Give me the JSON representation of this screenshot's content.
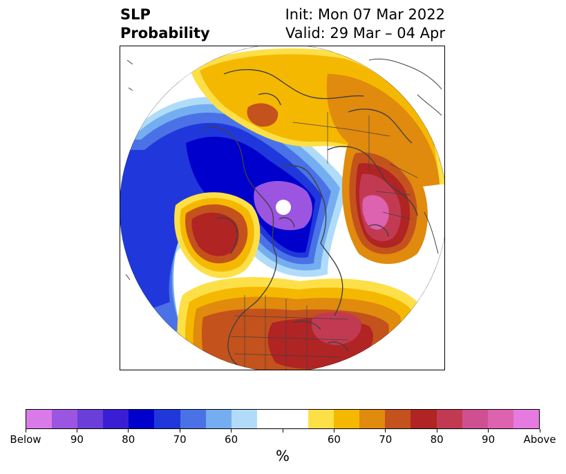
{
  "title": {
    "left_line1": "SLP",
    "left_line2": "Probability",
    "right_line1": "Init: Mon 07 Mar 2022",
    "right_line2": "Valid: 29 Mar – 04 Apr"
  },
  "colorbar": {
    "colors": [
      "#d97ae8",
      "#9c55e0",
      "#6a3fd9",
      "#3a1ed4",
      "#0000cc",
      "#2038db",
      "#4a72e6",
      "#74aef0",
      "#b0dcfa",
      "#ffffff",
      "#ffffff",
      "#fde048",
      "#f5b800",
      "#e08a0e",
      "#c4521c",
      "#b02424",
      "#c23a52",
      "#cf5090",
      "#dd62b0",
      "#e77ae0"
    ],
    "labels": [
      "Below",
      "90",
      "80",
      "70",
      "60",
      "",
      "60",
      "70",
      "80",
      "90",
      "Above"
    ],
    "units": "%"
  },
  "map": {
    "projection": "north-polar-stereographic",
    "colors": {
      "below_light": "#b0dcfa",
      "below_mid": "#74aef0",
      "below_med": "#4a72e6",
      "below_strong": "#2038db",
      "below_deep": "#0000cc",
      "below_extreme": "#9c55e0",
      "above_light": "#fde048",
      "above_mid": "#f5b800",
      "above_med": "#e08a0e",
      "above_strong": "#c4521c",
      "above_deep": "#b02424",
      "above_extreme": "#c23a52",
      "above_peak": "#dd62b0"
    }
  }
}
